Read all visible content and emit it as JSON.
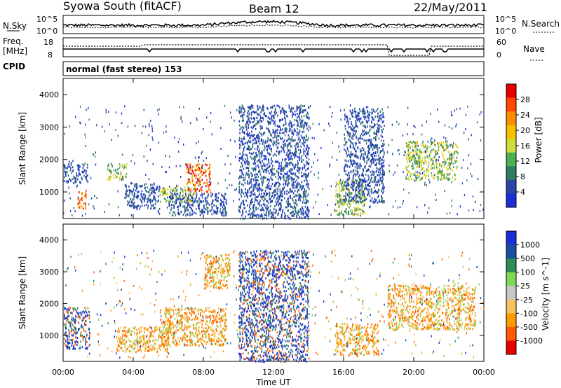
{
  "header": {
    "station": "Syowa South (fitACF)",
    "beam": "Beam 12",
    "date": "22/May/2011"
  },
  "noise_panel": {
    "left_label": "N.Sky",
    "right_label": "N.Search",
    "ticks_left": [
      "10^5",
      "10^0"
    ],
    "ticks_right": [
      "10^5",
      "10^0"
    ]
  },
  "freq_panel": {
    "left_label_1": "Freq.",
    "left_label_2": "[MHz]",
    "right_label": "Nave",
    "ticks_left": [
      "18",
      "8"
    ],
    "ticks_right": [
      "60",
      "0"
    ]
  },
  "cpid_panel": {
    "label": "CPID",
    "text": "normal (fast stereo) 153"
  },
  "colors": {
    "power_scale": [
      "#1a2fd6",
      "#2a44a8",
      "#2e7d5e",
      "#4caf50",
      "#cddc39",
      "#f6c000",
      "#ff8c00",
      "#ff4500",
      "#e60000"
    ],
    "velocity_scale": [
      "#e60000",
      "#ff5a00",
      "#ff9a00",
      "#f7c060",
      "#c8c8c8",
      "#7ed957",
      "#2e8b57",
      "#1a4fa0",
      "#1a2fd6"
    ]
  },
  "chart_data": [
    {
      "type": "heatmap",
      "name": "power",
      "ylabel": "Slant Range [km]",
      "yticks": [
        "1000",
        "2000",
        "3000",
        "4000"
      ],
      "ylim": [
        180,
        4500
      ],
      "xlim": [
        0,
        24
      ],
      "colorbar_label": "Power [dB]",
      "colorbar_ticks": [
        "4",
        "8",
        "12",
        "16",
        "20",
        "24",
        "28"
      ],
      "colorbar_range": [
        0,
        30
      ],
      "regions": [
        {
          "t0": 0.0,
          "t1": 1.4,
          "r0": 1300,
          "r1": 1900,
          "level": "low"
        },
        {
          "t0": 0.8,
          "t1": 1.3,
          "r0": 500,
          "r1": 1100,
          "level": "high"
        },
        {
          "t0": 2.5,
          "t1": 3.6,
          "r0": 1400,
          "r1": 1900,
          "level": "mid"
        },
        {
          "t0": 3.5,
          "t1": 5.5,
          "r0": 500,
          "r1": 1300,
          "level": "low"
        },
        {
          "t0": 5.5,
          "t1": 7.5,
          "r0": 700,
          "r1": 1200,
          "level": "mid"
        },
        {
          "t0": 7.0,
          "t1": 8.4,
          "r0": 1000,
          "r1": 1900,
          "level": "high"
        },
        {
          "t0": 6.0,
          "t1": 9.3,
          "r0": 300,
          "r1": 1000,
          "level": "low"
        },
        {
          "t0": 10.0,
          "t1": 14.0,
          "r0": 200,
          "r1": 3700,
          "level": "low"
        },
        {
          "t0": 15.5,
          "t1": 17.2,
          "r0": 300,
          "r1": 1400,
          "level": "mid"
        },
        {
          "t0": 16.0,
          "t1": 18.3,
          "r0": 700,
          "r1": 3600,
          "level": "low"
        },
        {
          "t0": 19.5,
          "t1": 22.5,
          "r0": 1400,
          "r1": 2600,
          "level": "mid"
        }
      ]
    },
    {
      "type": "heatmap",
      "name": "velocity",
      "xlabel": "Time UT",
      "ylabel": "Slant Range [km]",
      "yticks": [
        "1000",
        "2000",
        "3000",
        "4000"
      ],
      "ylim": [
        180,
        4500
      ],
      "xticks": [
        "00:00",
        "04:00",
        "08:00",
        "12:00",
        "16:00",
        "20:00",
        "00:00"
      ],
      "xlim": [
        0,
        24
      ],
      "colorbar_label": "Velocity [m s^-1]",
      "colorbar_ticks": [
        "-1000",
        "-500",
        "-100",
        "-25",
        "25",
        "100",
        "500",
        "1000"
      ],
      "regions": [
        {
          "t0": 0.0,
          "t1": 1.5,
          "r0": 600,
          "r1": 1900,
          "level": "pos"
        },
        {
          "t0": 3.0,
          "t1": 6.0,
          "r0": 500,
          "r1": 1300,
          "level": "neg"
        },
        {
          "t0": 5.5,
          "t1": 9.3,
          "r0": 700,
          "r1": 1900,
          "level": "neg"
        },
        {
          "t0": 8.0,
          "t1": 9.5,
          "r0": 2500,
          "r1": 3600,
          "level": "neg"
        },
        {
          "t0": 10.0,
          "t1": 14.0,
          "r0": 200,
          "r1": 3700,
          "level": "pos"
        },
        {
          "t0": 15.5,
          "t1": 18.0,
          "r0": 400,
          "r1": 1400,
          "level": "neg"
        },
        {
          "t0": 18.5,
          "t1": 23.5,
          "r0": 1200,
          "r1": 2600,
          "level": "neg"
        }
      ]
    }
  ]
}
